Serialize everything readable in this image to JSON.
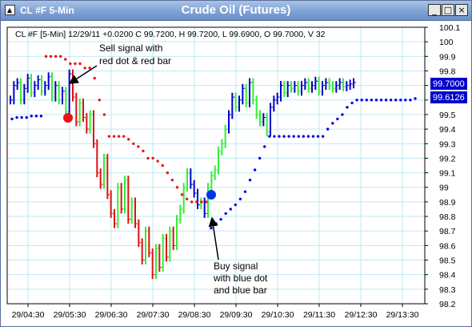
{
  "window": {
    "symbol": "CL #F 5-Min",
    "title": "Crude Oil (Futures)",
    "buttons": {
      "minimize": "_",
      "maximize": "□",
      "close": "×"
    }
  },
  "info_line": "CL #F [5-Min] 12/29/11  +0.0200 C 99.7200, H 99.7200, L 99.6900, O 99.7000, V 32",
  "annotations": {
    "sell": [
      "Sell signal with",
      "red dot & red bar"
    ],
    "buy": [
      "Buy signal",
      "with blue dot",
      "and blue bar"
    ]
  },
  "price_badges": [
    "99.7000",
    "99.6126"
  ],
  "colors": {
    "up_bar": "#33ee33",
    "down_bar": "#dd1111",
    "blue_bar": "#0000cc",
    "red_dots": "#ee1111",
    "blue_dots": "#0000ee",
    "grid": "#bfeaf0",
    "badge": "#0000cc"
  },
  "chart_data": {
    "type": "ohlc",
    "ylim": [
      98.2,
      100.1
    ],
    "y_ticks": [
      98.2,
      98.3,
      98.4,
      98.5,
      98.6,
      98.7,
      98.8,
      98.9,
      99,
      99.1,
      99.2,
      99.3,
      99.4,
      99.5,
      99.6,
      99.7,
      99.8,
      99.9,
      100,
      100.1
    ],
    "x_ticks": [
      "29/04:30",
      "29/05:30",
      "29/06:30",
      "29/07:30",
      "29/08:30",
      "29/09:30",
      "29/10:30",
      "29/11:30",
      "29/12:30",
      "29/13:30"
    ],
    "bars_per_hour": 12,
    "series": [
      {
        "color_key": "up_bar",
        "values": [
          99.6,
          99.7,
          99.72,
          99.6,
          99.68,
          99.75,
          99.65,
          99.7,
          99.74,
          99.66,
          99.7,
          99.76,
          99.62,
          99.7,
          99.6,
          99.66,
          99.52,
          99.78,
          99.62,
          99.45,
          99.58,
          99.48,
          99.4,
          99.5,
          99.3,
          99.1,
          99.02,
          99.2,
          98.95,
          98.82,
          98.75,
          99.0,
          98.85,
          99.05,
          98.78,
          98.9,
          98.75,
          98.62,
          98.5,
          98.7,
          98.55,
          98.4,
          98.58,
          98.45,
          98.65,
          98.52,
          98.7,
          98.6,
          98.78,
          98.85,
          99.0,
          99.1,
          99.02,
          98.96,
          98.88,
          98.9,
          98.82,
          99.0,
          99.08,
          99.12,
          99.25,
          99.3,
          99.4,
          99.5,
          99.62,
          99.55,
          99.6,
          99.68,
          99.58,
          99.72,
          99.6,
          99.5,
          99.45,
          99.48,
          99.38,
          99.55,
          99.6,
          99.62,
          99.7,
          99.65,
          99.7,
          99.68,
          99.7,
          99.66,
          99.7,
          99.72,
          99.68,
          99.7,
          99.73,
          99.66,
          99.7,
          99.72,
          99.7,
          99.68,
          99.7,
          99.72,
          99.69,
          99.7,
          99.71,
          99.72
        ]
      }
    ],
    "dot_series": [
      {
        "name": "",
        "values": [
          99.47,
          99.48,
          99.48,
          99.48,
          99.49,
          99.49,
          99.49,
          99.9,
          99.9,
          99.9,
          99.9,
          99.88,
          99.85,
          99.85,
          99.85,
          99.82,
          99.82,
          99.75,
          99.6,
          99.5,
          99.35,
          99.35,
          99.35,
          99.35,
          99.33,
          99.3,
          99.28,
          99.25,
          99.2,
          99.2,
          99.18,
          99.15,
          99.1,
          99.05,
          99.0,
          98.95,
          98.92,
          98.9,
          98.9,
          98.9,
          98.9,
          98.72,
          98.75,
          98.78,
          98.82,
          98.85,
          98.88,
          98.92,
          98.97,
          99.05,
          99.12,
          99.2,
          99.28,
          99.35,
          99.35,
          99.35,
          99.35,
          99.35,
          99.35,
          99.35,
          99.35,
          99.35,
          99.35,
          99.35,
          99.35,
          99.4,
          99.44,
          99.47,
          99.5,
          99.55,
          99.58,
          99.6,
          99.6,
          99.6,
          99.6,
          99.6,
          99.6,
          99.6,
          99.6,
          99.6,
          99.6,
          99.6,
          99.6,
          99.61
        ]
      }
    ]
  }
}
